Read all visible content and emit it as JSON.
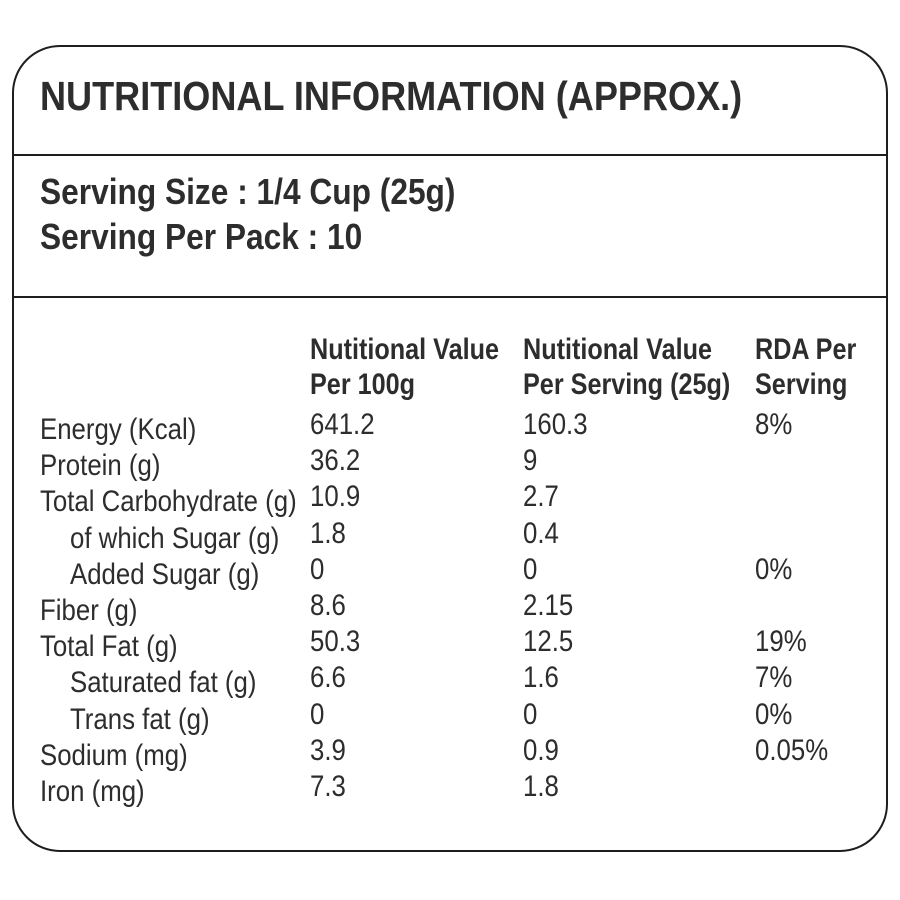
{
  "label": {
    "title": "NUTRITIONAL INFORMATION (APPROX.)",
    "serving": {
      "size_line": "Serving Size : 1/4 Cup (25g)",
      "pack_line": "Serving Per Pack : 10"
    },
    "table": {
      "columns": [
        {
          "line1": "Nutitional Value",
          "line2": "Per 100g"
        },
        {
          "line1": "Nutitional Value",
          "line2": "Per Serving (25g)"
        },
        {
          "line1": "RDA Per",
          "line2": "Serving"
        }
      ],
      "rows": [
        {
          "label": "Energy (Kcal)",
          "per_100g": "641.2",
          "per_serving": "160.3",
          "rda": "8%"
        },
        {
          "label": "Protein (g)",
          "per_100g": "36.2",
          "per_serving": "9",
          "rda": ""
        },
        {
          "label": "Total Carbohydrate (g)",
          "per_100g": "10.9",
          "per_serving": "2.7",
          "rda": ""
        },
        {
          "label": "of which Sugar (g)",
          "per_100g": "1.8",
          "per_serving": "0.4",
          "rda": ""
        },
        {
          "label": "Added Sugar (g)",
          "per_100g": "0",
          "per_serving": "0",
          "rda": "0%"
        },
        {
          "label": "Fiber (g)",
          "per_100g": "8.6",
          "per_serving": "2.15",
          "rda": ""
        },
        {
          "label": "Total Fat (g)",
          "per_100g": "50.3",
          "per_serving": "12.5",
          "rda": "19%"
        },
        {
          "label": "Saturated fat (g)",
          "per_100g": "6.6",
          "per_serving": "1.6",
          "rda": "7%"
        },
        {
          "label": "Trans fat (g)",
          "per_100g": "0",
          "per_serving": "0",
          "rda": "0%"
        },
        {
          "label": "Sodium (mg)",
          "per_100g": "3.9",
          "per_serving": "0.9",
          "rda": "0.05%"
        },
        {
          "label": "Iron (mg)",
          "per_100g": "7.3",
          "per_serving": "1.8",
          "rda": ""
        }
      ]
    },
    "colors": {
      "text": "#2d2d2d",
      "border": "#1e1e1e",
      "background": "#ffffff"
    }
  }
}
